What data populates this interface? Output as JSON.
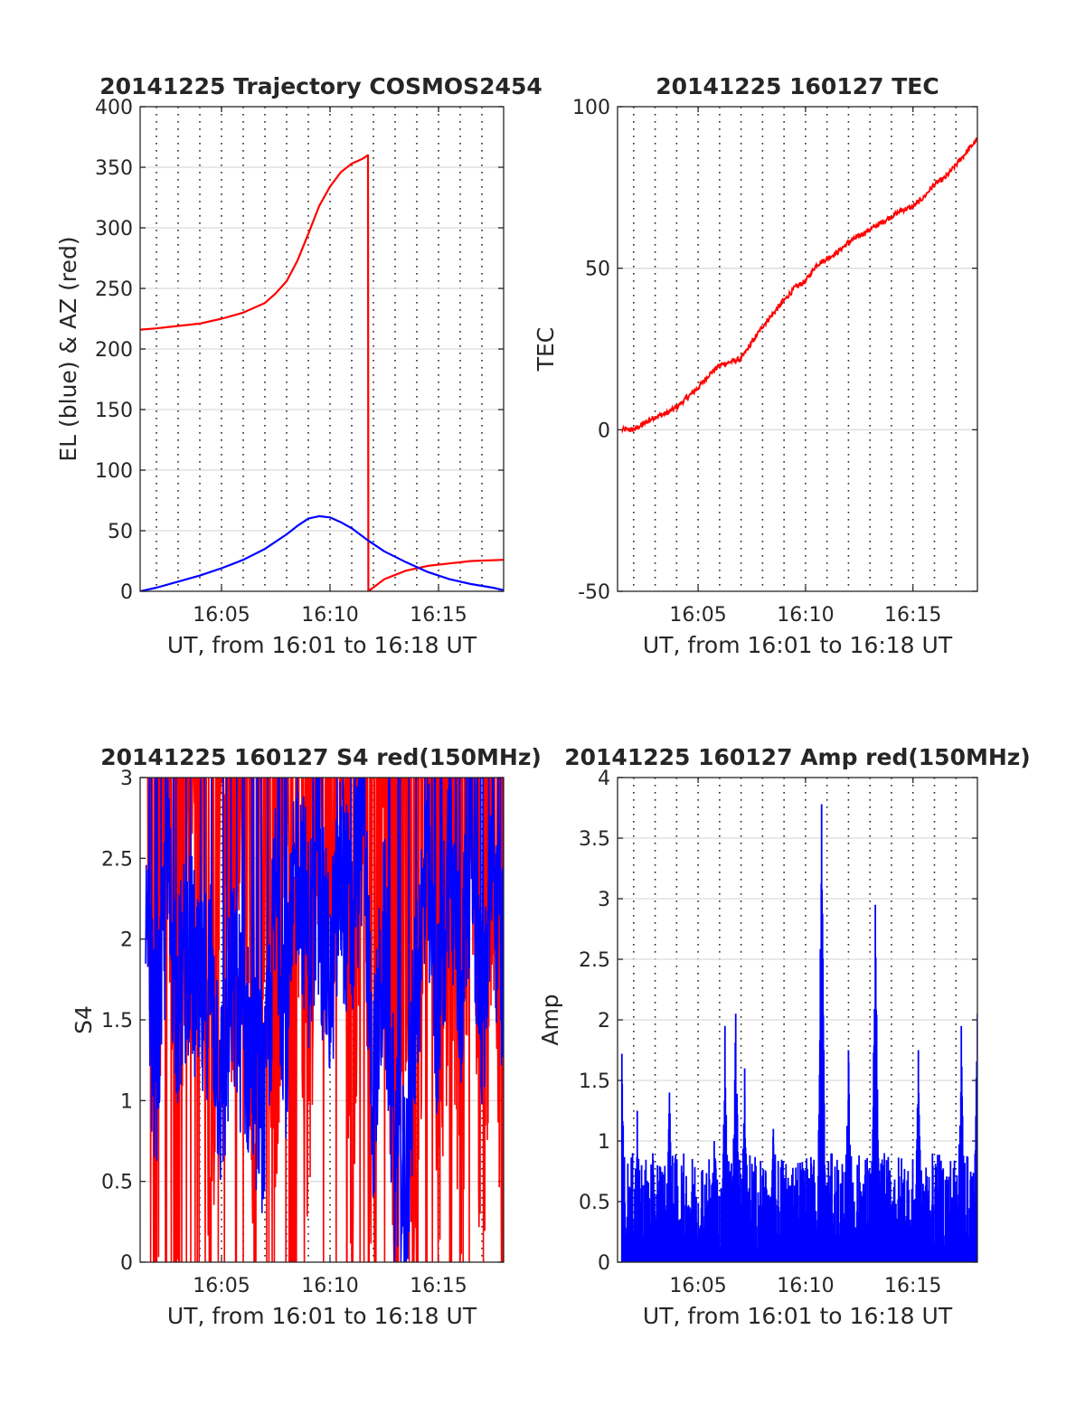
{
  "chart_data": [
    {
      "type": "line",
      "title": "20141225 Trajectory COSMOS2454",
      "xlabel": "UT, from 16:01 to 16:18 UT",
      "ylabel": "EL (blue) & AZ (red)",
      "xlim": [
        "16:01:15",
        "16:18:00"
      ],
      "ylim": [
        0,
        400
      ],
      "xticks": [
        "16:05",
        "16:10",
        "16:15"
      ],
      "yticks": [
        "0",
        "50",
        "100",
        "150",
        "200",
        "250",
        "300",
        "350",
        "400"
      ],
      "vertical_dotted_grid_every_minutes": 1,
      "horizontal_grid": true,
      "series": [
        {
          "color": "#ff0000",
          "x": [
            "16:01:15",
            "16:02:00",
            "16:03:00",
            "16:04:00",
            "16:05:00",
            "16:06:00",
            "16:07:00",
            "16:07:30",
            "16:08:00",
            "16:08:30",
            "16:09:00",
            "16:09:30",
            "16:10:00",
            "16:10:30",
            "16:11:00",
            "16:11:30",
            "16:11:45",
            "16:11:46",
            "16:12:30",
            "16:13:30",
            "16:14:30",
            "16:15:30",
            "16:16:30",
            "16:18:00"
          ],
          "y": [
            216,
            217,
            219,
            221,
            225,
            230,
            238,
            246,
            256,
            273,
            295,
            318,
            334,
            346,
            353,
            357,
            360,
            0,
            10,
            17,
            21,
            23,
            25,
            26
          ]
        },
        {
          "color": "#0000ff",
          "x": [
            "16:01:15",
            "16:02:00",
            "16:03:00",
            "16:04:00",
            "16:05:00",
            "16:06:00",
            "16:07:00",
            "16:08:00",
            "16:08:30",
            "16:09:00",
            "16:09:30",
            "16:10:00",
            "16:10:30",
            "16:11:00",
            "16:11:45",
            "16:12:30",
            "16:13:30",
            "16:14:30",
            "16:15:30",
            "16:16:30",
            "16:17:30",
            "16:18:00"
          ],
          "y": [
            0,
            3,
            8,
            13,
            19,
            26,
            35,
            47,
            54,
            60,
            62,
            61,
            57,
            52,
            42,
            33,
            24,
            16,
            10,
            6,
            3,
            1
          ]
        }
      ]
    },
    {
      "type": "line",
      "title": "20141225 160127 TEC",
      "xlabel": "UT, from 16:01 to 16:18 UT",
      "ylabel": "TEC",
      "xlim": [
        "16:01:15",
        "16:18:00"
      ],
      "ylim": [
        -50,
        100
      ],
      "xticks": [
        "16:05",
        "16:10",
        "16:15"
      ],
      "yticks": [
        "-50",
        "0",
        "50",
        "100"
      ],
      "vertical_dotted_grid_every_minutes": 1,
      "horizontal_grid": true,
      "series": [
        {
          "color": "#ff0000",
          "x": [
            "16:01:27",
            "16:02:00",
            "16:02:30",
            "16:03:00",
            "16:03:30",
            "16:04:00",
            "16:04:30",
            "16:05:00",
            "16:05:30",
            "16:06:00",
            "16:06:30",
            "16:07:00",
            "16:07:30",
            "16:08:00",
            "16:08:30",
            "16:09:00",
            "16:09:30",
            "16:10:00",
            "16:10:30",
            "16:11:00",
            "16:11:30",
            "16:12:00",
            "16:12:30",
            "16:13:00",
            "16:13:30",
            "16:14:00",
            "16:14:30",
            "16:15:00",
            "16:15:30",
            "16:16:00",
            "16:16:30",
            "16:17:00",
            "16:17:30",
            "16:18:00"
          ],
          "y": [
            0,
            0,
            2,
            4,
            5,
            7,
            10,
            13,
            17,
            20,
            21,
            22,
            27,
            32,
            36,
            40,
            44,
            46,
            51,
            53,
            55,
            58,
            60,
            62,
            64,
            66,
            68,
            69,
            72,
            76,
            78,
            82,
            86,
            90
          ]
        }
      ]
    },
    {
      "type": "line",
      "title": "20141225 160127 S4 red(150MHz)",
      "xlabel": "UT, from 16:01 to 16:18 UT",
      "ylabel": "S4",
      "xlim": [
        "16:01:15",
        "16:18:00"
      ],
      "ylim": [
        0,
        3
      ],
      "xticks": [
        "16:05",
        "16:10",
        "16:15"
      ],
      "yticks": [
        "0",
        "0.5",
        "1",
        "1.5",
        "2",
        "2.5",
        "3"
      ],
      "vertical_dotted_grid_every_minutes": 1,
      "horizontal_grid": true,
      "series": [
        {
          "color": "#ff0000",
          "x": [
            "16:01:30",
            "16:02:00",
            "16:02:30",
            "16:03:00",
            "16:03:30",
            "16:04:00",
            "16:04:30",
            "16:05:00",
            "16:05:30",
            "16:06:00",
            "16:06:30",
            "16:07:00",
            "16:07:30",
            "16:08:00",
            "16:08:30",
            "16:09:00",
            "16:09:30",
            "16:10:00",
            "16:10:30",
            "16:11:00",
            "16:11:30",
            "16:12:00",
            "16:12:30",
            "16:13:00",
            "16:13:30",
            "16:14:00",
            "16:14:30",
            "16:15:00",
            "16:15:30",
            "16:16:00",
            "16:16:30",
            "16:17:00",
            "16:17:30",
            "16:18:00"
          ],
          "y": [
            3,
            0,
            3,
            0,
            2.8,
            3,
            0,
            3,
            1.2,
            3,
            0,
            2.2,
            0.8,
            3,
            2.4,
            0.6,
            2.9,
            1.8,
            3,
            0.1,
            3,
            0,
            2.6,
            0,
            1.5,
            0,
            3,
            0.3,
            2,
            0,
            3,
            0,
            2.5,
            0
          ]
        },
        {
          "color": "#0000ff",
          "x": [
            "16:01:30",
            "16:02:00",
            "16:02:30",
            "16:03:00",
            "16:03:30",
            "16:04:00",
            "16:04:30",
            "16:05:00",
            "16:05:30",
            "16:06:00",
            "16:06:30",
            "16:07:00",
            "16:07:30",
            "16:08:00",
            "16:08:30",
            "16:09:00",
            "16:09:30",
            "16:10:00",
            "16:10:30",
            "16:11:00",
            "16:11:30",
            "16:12:00",
            "16:12:30",
            "16:13:00",
            "16:13:30",
            "16:14:00",
            "16:14:30",
            "16:15:00",
            "16:15:30",
            "16:16:00",
            "16:16:30",
            "16:17:00",
            "16:17:30",
            "16:18:00"
          ],
          "y": [
            1.9,
            1.2,
            2.4,
            1.6,
            2.0,
            1.5,
            1.8,
            1.0,
            1.7,
            1.4,
            1.2,
            0.9,
            2.3,
            1.4,
            2.6,
            2.0,
            2.2,
            1.7,
            2.4,
            2.0,
            2.8,
            1.0,
            2.0,
            0.6,
            0.4,
            1.8,
            2.4,
            1.4,
            2.6,
            1.6,
            2.7,
            1.5,
            2.3,
            1.8
          ]
        }
      ]
    },
    {
      "type": "line",
      "title": "20141225 160127 Amp red(150MHz)",
      "xlabel": "UT, from 16:01 to 16:18 UT",
      "ylabel": "Amp",
      "xlim": [
        "16:01:15",
        "16:18:00"
      ],
      "ylim": [
        0,
        4
      ],
      "xticks": [
        "16:05",
        "16:10",
        "16:15"
      ],
      "yticks": [
        "0",
        "0.5",
        "1",
        "1.5",
        "2",
        "2.5",
        "3",
        "3.5",
        "4"
      ],
      "vertical_dotted_grid_every_minutes": 1,
      "horizontal_grid": true,
      "series": [
        {
          "color": "#0000ff",
          "peaks": [
            {
              "x": "16:01:27",
              "y": 1.72
            },
            {
              "x": "16:02:10",
              "y": 1.25
            },
            {
              "x": "16:03:40",
              "y": 1.4
            },
            {
              "x": "16:05:45",
              "y": 1.0
            },
            {
              "x": "16:06:15",
              "y": 1.95
            },
            {
              "x": "16:06:45",
              "y": 2.05
            },
            {
              "x": "16:07:10",
              "y": 1.6
            },
            {
              "x": "16:08:30",
              "y": 1.1
            },
            {
              "x": "16:10:45",
              "y": 3.78
            },
            {
              "x": "16:12:00",
              "y": 1.75
            },
            {
              "x": "16:13:15",
              "y": 2.95
            },
            {
              "x": "16:15:15",
              "y": 1.75
            },
            {
              "x": "16:17:15",
              "y": 1.95
            },
            {
              "x": "16:18:00",
              "y": 2.05
            }
          ],
          "baseline_range": [
            0,
            1.0
          ]
        }
      ]
    }
  ]
}
